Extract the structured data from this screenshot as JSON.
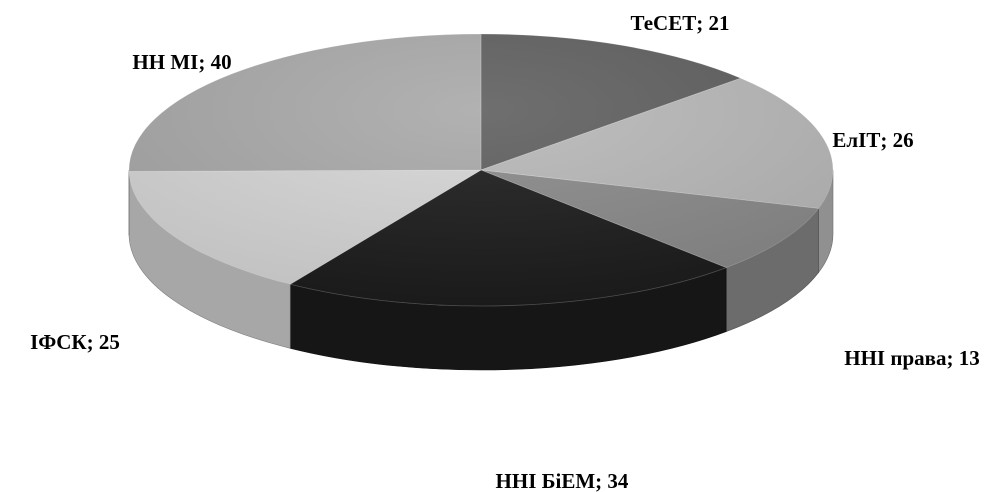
{
  "chart_data": {
    "type": "pie",
    "title": "",
    "categories": [
      "ТеСЕТ",
      "ЕлІТ",
      "ННІ права",
      "ННІ БіЕМ",
      "ІФСК",
      "НН МІ"
    ],
    "values": [
      21,
      26,
      13,
      34,
      25,
      40
    ],
    "labels": [
      "ТеСЕТ; 21",
      "ЕлІТ; 26",
      "ННІ права; 13",
      "ННІ БіЕМ; 34",
      "ІФСК; 25",
      "НН МІ; 40"
    ],
    "colors": [
      "#5f5f5f",
      "#b8b8b8",
      "#8a8a8a",
      "#1c1c1c",
      "#d6d6d6",
      "#a9a9a9"
    ],
    "start_angle_deg": -90,
    "direction": "clockwise",
    "style": "3d",
    "legend": "none"
  }
}
